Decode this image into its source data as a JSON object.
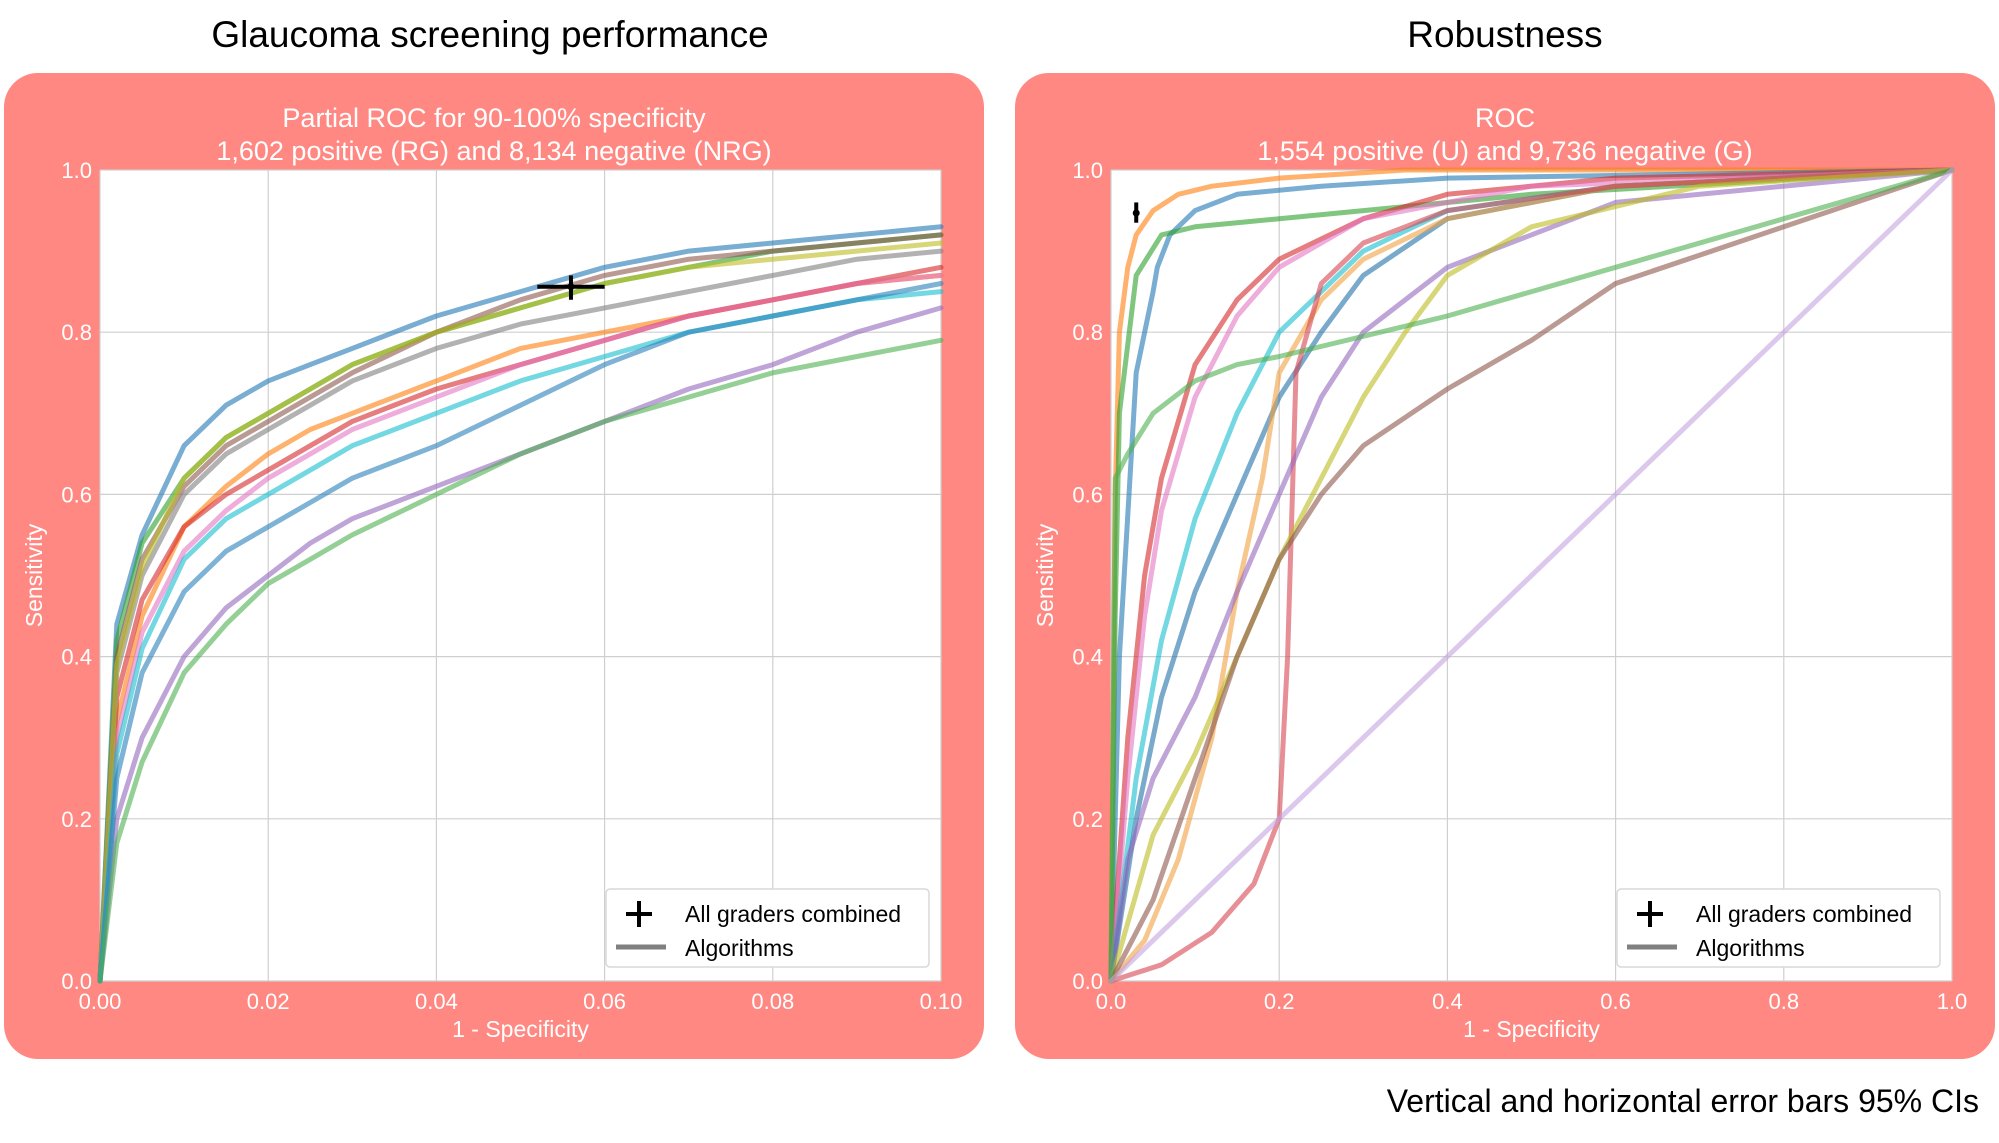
{
  "figure": {
    "left_heading": "Glaucoma screening performance",
    "right_heading": "Robustness",
    "footnote": "Vertical and horizontal error bars 95% CIs"
  },
  "legend": {
    "graders": "All graders combined",
    "algorithms": "Algorithms"
  },
  "colors": {
    "panel_bg": "#ff8882",
    "plot_bg": "#ffffff",
    "grid": "#cfcfcf",
    "series_palette": [
      "#1f77b4",
      "#ff7f0e",
      "#2ca02c",
      "#d62728",
      "#9467bd",
      "#8c564b",
      "#e377c2",
      "#7f7f7f",
      "#bcbd22",
      "#17becf"
    ]
  },
  "chart_data": [
    {
      "type": "line",
      "title": "Partial ROC for 90-100% specificity",
      "subtitle": "1,602 positive (RG) and 8,134 negative (NRG)",
      "xlabel": "1 - Specificity",
      "ylabel": "Sensitivity",
      "xlim": [
        0,
        0.1
      ],
      "ylim": [
        0,
        1.0
      ],
      "xticks": [
        "0.00",
        "0.02",
        "0.04",
        "0.06",
        "0.08",
        "0.10"
      ],
      "yticks": [
        "0.0",
        "0.2",
        "0.4",
        "0.6",
        "0.8",
        "1.0"
      ],
      "grid": true,
      "legend_position": "lower-right",
      "series": [
        {
          "color": "#1f77b4",
          "x": [
            0,
            0.002,
            0.005,
            0.01,
            0.015,
            0.02,
            0.025,
            0.03,
            0.04,
            0.05,
            0.06,
            0.07,
            0.08,
            0.09,
            0.1
          ],
          "y": [
            0,
            0.44,
            0.55,
            0.66,
            0.71,
            0.74,
            0.76,
            0.78,
            0.82,
            0.85,
            0.88,
            0.9,
            0.91,
            0.92,
            0.93
          ]
        },
        {
          "color": "#ff7f0e",
          "x": [
            0,
            0.002,
            0.005,
            0.01,
            0.015,
            0.02,
            0.025,
            0.03,
            0.04,
            0.05,
            0.06,
            0.07,
            0.08,
            0.09,
            0.1
          ],
          "y": [
            0,
            0.32,
            0.45,
            0.56,
            0.61,
            0.65,
            0.68,
            0.7,
            0.74,
            0.78,
            0.8,
            0.82,
            0.84,
            0.86,
            0.87
          ]
        },
        {
          "color": "#2ca02c",
          "x": [
            0,
            0.002,
            0.005,
            0.01,
            0.015,
            0.02,
            0.025,
            0.03,
            0.04,
            0.05,
            0.06,
            0.07,
            0.08,
            0.09,
            0.1
          ],
          "y": [
            0,
            0.42,
            0.54,
            0.62,
            0.67,
            0.7,
            0.73,
            0.76,
            0.8,
            0.83,
            0.86,
            0.88,
            0.9,
            0.91,
            0.92
          ]
        },
        {
          "color": "#d62728",
          "x": [
            0,
            0.002,
            0.005,
            0.01,
            0.015,
            0.02,
            0.025,
            0.03,
            0.04,
            0.05,
            0.06,
            0.07,
            0.08,
            0.09,
            0.1
          ],
          "y": [
            0,
            0.35,
            0.47,
            0.56,
            0.6,
            0.63,
            0.66,
            0.69,
            0.73,
            0.76,
            0.79,
            0.82,
            0.84,
            0.86,
            0.88
          ]
        },
        {
          "color": "#9467bd",
          "x": [
            0,
            0.002,
            0.005,
            0.01,
            0.015,
            0.02,
            0.025,
            0.03,
            0.04,
            0.05,
            0.06,
            0.07,
            0.08,
            0.09,
            0.1
          ],
          "y": [
            0,
            0.2,
            0.3,
            0.4,
            0.46,
            0.5,
            0.54,
            0.57,
            0.61,
            0.65,
            0.69,
            0.73,
            0.76,
            0.8,
            0.83
          ]
        },
        {
          "color": "#8c564b",
          "x": [
            0,
            0.002,
            0.005,
            0.01,
            0.015,
            0.02,
            0.025,
            0.03,
            0.04,
            0.05,
            0.06,
            0.07,
            0.08,
            0.09,
            0.1
          ],
          "y": [
            0,
            0.4,
            0.52,
            0.61,
            0.66,
            0.69,
            0.72,
            0.75,
            0.8,
            0.84,
            0.87,
            0.89,
            0.9,
            0.91,
            0.92
          ]
        },
        {
          "color": "#e377c2",
          "x": [
            0,
            0.002,
            0.005,
            0.01,
            0.015,
            0.02,
            0.025,
            0.03,
            0.04,
            0.05,
            0.06,
            0.07,
            0.08,
            0.09,
            0.1
          ],
          "y": [
            0,
            0.3,
            0.43,
            0.53,
            0.58,
            0.62,
            0.65,
            0.68,
            0.72,
            0.76,
            0.79,
            0.82,
            0.84,
            0.86,
            0.87
          ]
        },
        {
          "color": "#7f7f7f",
          "x": [
            0,
            0.002,
            0.005,
            0.01,
            0.015,
            0.02,
            0.025,
            0.03,
            0.04,
            0.05,
            0.06,
            0.07,
            0.08,
            0.09,
            0.1
          ],
          "y": [
            0,
            0.38,
            0.5,
            0.6,
            0.65,
            0.68,
            0.71,
            0.74,
            0.78,
            0.81,
            0.83,
            0.85,
            0.87,
            0.89,
            0.9
          ]
        },
        {
          "color": "#bcbd22",
          "x": [
            0,
            0.002,
            0.005,
            0.01,
            0.015,
            0.02,
            0.025,
            0.03,
            0.04,
            0.05,
            0.06,
            0.07,
            0.08,
            0.09,
            0.1
          ],
          "y": [
            0,
            0.39,
            0.51,
            0.62,
            0.67,
            0.7,
            0.73,
            0.76,
            0.8,
            0.83,
            0.86,
            0.88,
            0.89,
            0.9,
            0.91
          ]
        },
        {
          "color": "#17becf",
          "x": [
            0,
            0.002,
            0.005,
            0.01,
            0.015,
            0.02,
            0.025,
            0.03,
            0.04,
            0.05,
            0.06,
            0.07,
            0.08,
            0.09,
            0.1
          ],
          "y": [
            0,
            0.28,
            0.41,
            0.52,
            0.57,
            0.6,
            0.63,
            0.66,
            0.7,
            0.74,
            0.77,
            0.8,
            0.82,
            0.84,
            0.85
          ]
        },
        {
          "color": "#2a80b9",
          "x": [
            0,
            0.002,
            0.005,
            0.01,
            0.015,
            0.02,
            0.025,
            0.03,
            0.04,
            0.05,
            0.06,
            0.07,
            0.08,
            0.09,
            0.1
          ],
          "y": [
            0,
            0.25,
            0.38,
            0.48,
            0.53,
            0.56,
            0.59,
            0.62,
            0.66,
            0.71,
            0.76,
            0.8,
            0.82,
            0.84,
            0.86
          ]
        },
        {
          "color": "#4caf50",
          "x": [
            0,
            0.002,
            0.005,
            0.01,
            0.015,
            0.02,
            0.025,
            0.03,
            0.04,
            0.05,
            0.06,
            0.07,
            0.08,
            0.09,
            0.1
          ],
          "y": [
            0,
            0.17,
            0.27,
            0.38,
            0.44,
            0.49,
            0.52,
            0.55,
            0.6,
            0.65,
            0.69,
            0.72,
            0.75,
            0.77,
            0.79
          ]
        }
      ],
      "graders_point": {
        "x": 0.056,
        "y": 0.856,
        "x_ci": [
          0.052,
          0.06
        ],
        "y_ci": [
          0.84,
          0.87
        ]
      }
    },
    {
      "type": "line",
      "title": "ROC",
      "subtitle": "1,554 positive (U) and 9,736 negative (G)",
      "xlabel": "1 - Specificity",
      "ylabel": "Sensitivity",
      "xlim": [
        0,
        1.0
      ],
      "ylim": [
        0,
        1.0
      ],
      "xticks": [
        "0.0",
        "0.2",
        "0.4",
        "0.6",
        "0.8",
        "1.0"
      ],
      "yticks": [
        "0.0",
        "0.2",
        "0.4",
        "0.6",
        "0.8",
        "1.0"
      ],
      "grid": true,
      "legend_position": "lower-right",
      "series": [
        {
          "color": "#ff7f0e",
          "x": [
            0,
            0.005,
            0.01,
            0.02,
            0.03,
            0.05,
            0.08,
            0.12,
            0.2,
            0.35,
            1.0
          ],
          "y": [
            0,
            0.6,
            0.8,
            0.88,
            0.92,
            0.95,
            0.97,
            0.98,
            0.99,
            1.0,
            1.0
          ]
        },
        {
          "color": "#1f77b4",
          "x": [
            0,
            0.01,
            0.03,
            0.05,
            0.055,
            0.07,
            0.1,
            0.15,
            0.25,
            0.4,
            1.0
          ],
          "y": [
            0,
            0.4,
            0.75,
            0.85,
            0.88,
            0.92,
            0.95,
            0.97,
            0.98,
            0.99,
            1.0
          ]
        },
        {
          "color": "#2ca02c",
          "x": [
            0,
            0.005,
            0.01,
            0.03,
            0.06,
            0.1,
            0.2,
            0.3,
            0.5,
            1.0
          ],
          "y": [
            0,
            0.45,
            0.7,
            0.87,
            0.92,
            0.93,
            0.94,
            0.95,
            0.97,
            1.0
          ]
        },
        {
          "color": "#d62728",
          "x": [
            0,
            0.02,
            0.04,
            0.06,
            0.1,
            0.15,
            0.2,
            0.3,
            0.4,
            0.6,
            1.0
          ],
          "y": [
            0,
            0.3,
            0.5,
            0.62,
            0.76,
            0.84,
            0.89,
            0.94,
            0.97,
            0.99,
            1.0
          ]
        },
        {
          "color": "#e377c2",
          "x": [
            0,
            0.02,
            0.04,
            0.06,
            0.1,
            0.15,
            0.2,
            0.3,
            0.5,
            1.0
          ],
          "y": [
            0,
            0.25,
            0.45,
            0.58,
            0.72,
            0.82,
            0.88,
            0.94,
            0.98,
            1.0
          ]
        },
        {
          "color": "#17becf",
          "x": [
            0,
            0.03,
            0.06,
            0.1,
            0.15,
            0.2,
            0.3,
            0.4,
            0.6,
            1.0
          ],
          "y": [
            0,
            0.25,
            0.42,
            0.57,
            0.7,
            0.8,
            0.9,
            0.95,
            0.98,
            1.0
          ]
        },
        {
          "color": "#1f6fa8",
          "x": [
            0,
            0.03,
            0.06,
            0.1,
            0.15,
            0.2,
            0.25,
            0.3,
            0.4,
            0.6,
            1.0
          ],
          "y": [
            0,
            0.2,
            0.35,
            0.48,
            0.6,
            0.72,
            0.8,
            0.87,
            0.94,
            0.98,
            1.0
          ]
        },
        {
          "color": "#f0a040",
          "x": [
            0,
            0.04,
            0.08,
            0.12,
            0.15,
            0.18,
            0.2,
            0.25,
            0.3,
            0.4,
            0.6,
            1.0
          ],
          "y": [
            0,
            0.05,
            0.15,
            0.3,
            0.48,
            0.62,
            0.75,
            0.84,
            0.89,
            0.94,
            0.98,
            1.0
          ]
        },
        {
          "color": "#d64550",
          "x": [
            0,
            0.06,
            0.12,
            0.17,
            0.2,
            0.21,
            0.22,
            0.25,
            0.3,
            0.4,
            0.6,
            1.0
          ],
          "y": [
            0,
            0.02,
            0.06,
            0.12,
            0.2,
            0.4,
            0.75,
            0.86,
            0.91,
            0.95,
            0.98,
            1.0
          ]
        },
        {
          "color": "#9467bd",
          "x": [
            0,
            0.02,
            0.05,
            0.1,
            0.15,
            0.2,
            0.25,
            0.3,
            0.4,
            0.6,
            1.0
          ],
          "y": [
            0,
            0.15,
            0.25,
            0.35,
            0.48,
            0.6,
            0.72,
            0.8,
            0.88,
            0.96,
            1.0
          ]
        },
        {
          "color": "#bcbd22",
          "x": [
            0,
            0.05,
            0.1,
            0.15,
            0.2,
            0.25,
            0.3,
            0.35,
            0.4,
            0.5,
            0.7,
            1.0
          ],
          "y": [
            0,
            0.18,
            0.28,
            0.4,
            0.52,
            0.62,
            0.72,
            0.8,
            0.87,
            0.93,
            0.98,
            1.0
          ]
        },
        {
          "color": "#8c564b",
          "x": [
            0,
            0.05,
            0.1,
            0.15,
            0.2,
            0.25,
            0.3,
            0.4,
            0.5,
            0.6,
            0.8,
            1.0
          ],
          "y": [
            0,
            0.1,
            0.25,
            0.4,
            0.52,
            0.6,
            0.66,
            0.73,
            0.79,
            0.86,
            0.93,
            1.0
          ]
        },
        {
          "color": "#4caf50",
          "x": [
            0,
            0.005,
            0.02,
            0.05,
            0.1,
            0.15,
            0.2,
            0.4,
            0.6,
            0.8,
            1.0
          ],
          "y": [
            0,
            0.62,
            0.65,
            0.7,
            0.74,
            0.76,
            0.77,
            0.82,
            0.88,
            0.94,
            1.0
          ]
        },
        {
          "color": "#c5a3e0",
          "x": [
            0,
            1.0
          ],
          "y": [
            0,
            1.0
          ]
        }
      ],
      "graders_point": {
        "x": 0.03,
        "y": 0.947,
        "x_ci": [
          0.028,
          0.032
        ],
        "y_ci": [
          0.935,
          0.96
        ]
      }
    }
  ]
}
